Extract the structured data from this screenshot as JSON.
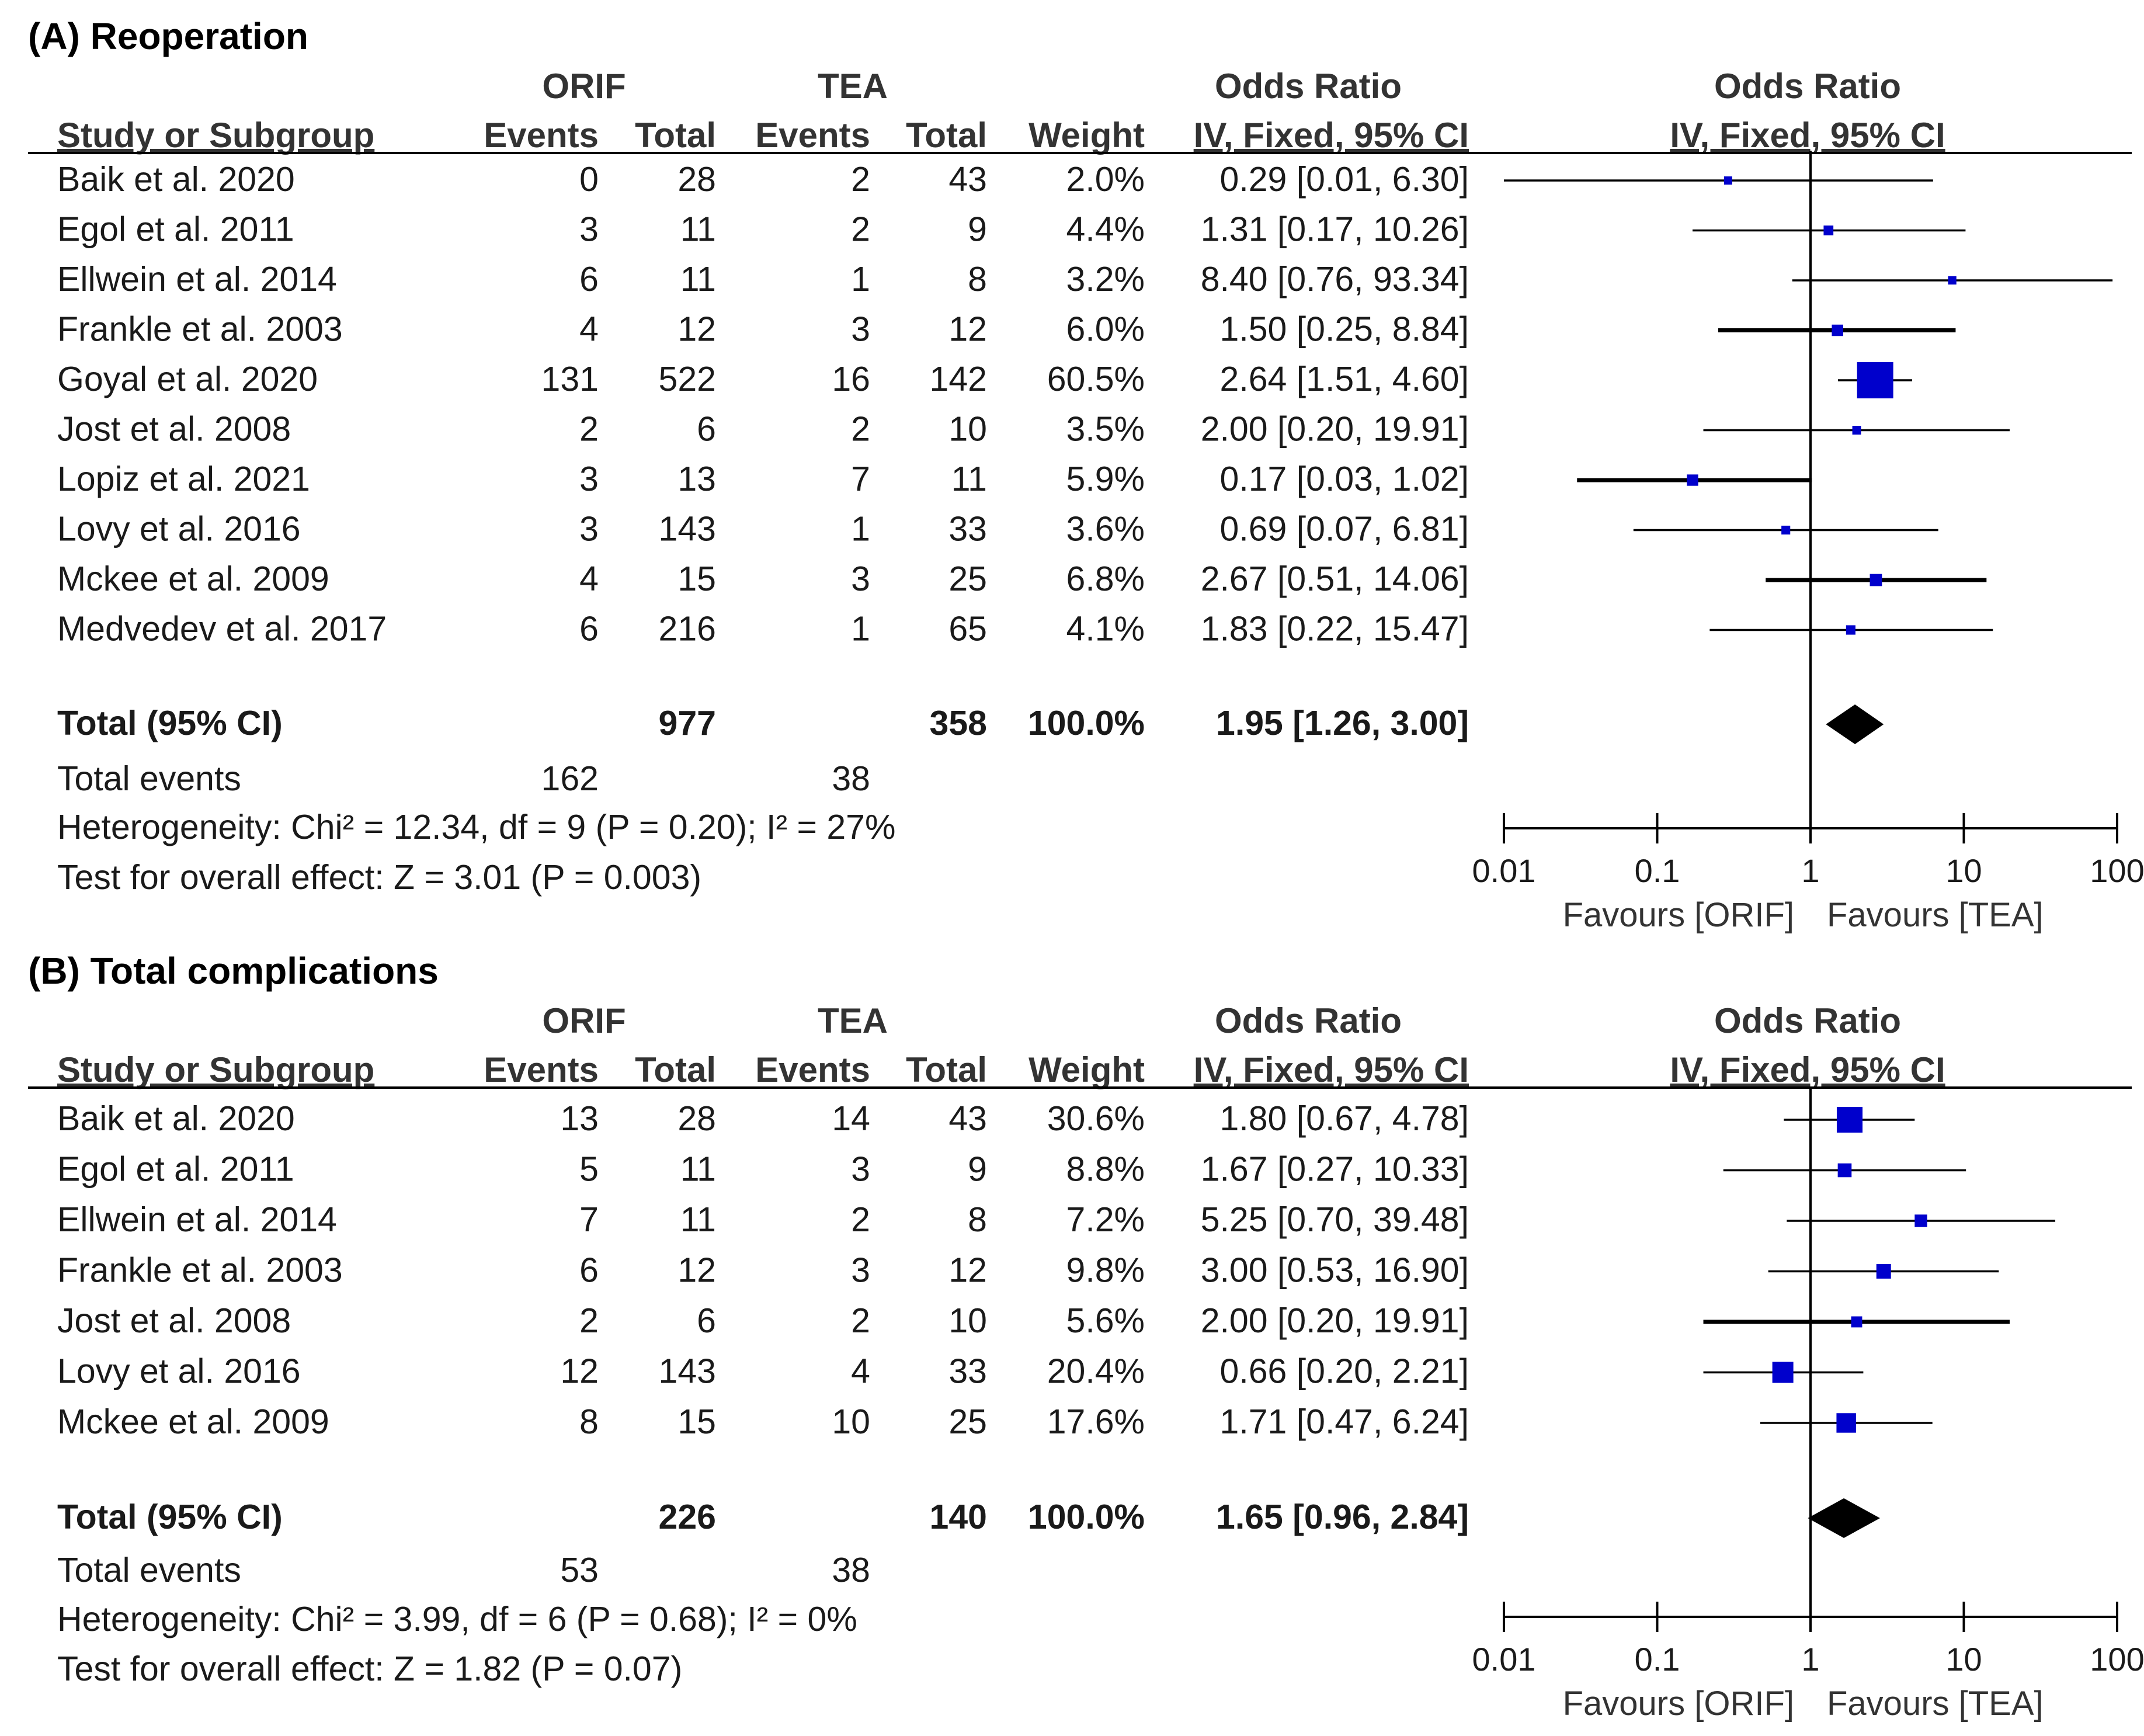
{
  "colors": {
    "ci_line": "#000000",
    "marker": "#0000cc",
    "diamond": "#000000",
    "axis": "#000000",
    "header_text": "#333333"
  },
  "headers": {
    "group1": "ORIF",
    "group2": "TEA",
    "odds_ratio": "Odds Ratio",
    "study": "Study or Subgroup",
    "events": "Events",
    "total": "Total",
    "weight": "Weight",
    "method": "IV, Fixed, 95% CI"
  },
  "axis": {
    "ticks": [
      "0.01",
      "0.1",
      "1",
      "10",
      "100"
    ],
    "favours_left": "Favours [ORIF]",
    "favours_right": "Favours [TEA]"
  },
  "chart_data": [
    {
      "type": "forest",
      "panel": "A",
      "title": "(A) Reoperation",
      "xscale": "log",
      "xlim": [
        0.01,
        100
      ],
      "studies": [
        {
          "name": "Baik et al. 2020",
          "e1": "0",
          "t1": "28",
          "e2": "2",
          "t2": "43",
          "weight": "2.0%",
          "ci_text": "0.29 [0.01, 6.30]",
          "or": 0.29,
          "lo": 0.01,
          "hi": 6.3,
          "w": 2.0
        },
        {
          "name": "Egol et al. 2011",
          "e1": "3",
          "t1": "11",
          "e2": "2",
          "t2": "9",
          "weight": "4.4%",
          "ci_text": "1.31 [0.17, 10.26]",
          "or": 1.31,
          "lo": 0.17,
          "hi": 10.26,
          "w": 4.4
        },
        {
          "name": "Ellwein et al. 2014",
          "e1": "6",
          "t1": "11",
          "e2": "1",
          "t2": "8",
          "weight": "3.2%",
          "ci_text": "8.40 [0.76, 93.34]",
          "or": 8.4,
          "lo": 0.76,
          "hi": 93.34,
          "w": 3.2
        },
        {
          "name": "Frankle et al. 2003",
          "e1": "4",
          "t1": "12",
          "e2": "3",
          "t2": "12",
          "weight": "6.0%",
          "ci_text": "1.50 [0.25, 8.84]",
          "or": 1.5,
          "lo": 0.25,
          "hi": 8.84,
          "w": 6.0
        },
        {
          "name": "Goyal et al. 2020",
          "e1": "131",
          "t1": "522",
          "e2": "16",
          "t2": "142",
          "weight": "60.5%",
          "ci_text": "2.64 [1.51, 4.60]",
          "or": 2.64,
          "lo": 1.51,
          "hi": 4.6,
          "w": 60.5
        },
        {
          "name": "Jost et al. 2008",
          "e1": "2",
          "t1": "6",
          "e2": "2",
          "t2": "10",
          "weight": "3.5%",
          "ci_text": "2.00 [0.20, 19.91]",
          "or": 2.0,
          "lo": 0.2,
          "hi": 19.91,
          "w": 3.5
        },
        {
          "name": "Lopiz et al. 2021",
          "e1": "3",
          "t1": "13",
          "e2": "7",
          "t2": "11",
          "weight": "5.9%",
          "ci_text": "0.17 [0.03, 1.02]",
          "or": 0.17,
          "lo": 0.03,
          "hi": 1.02,
          "w": 5.9
        },
        {
          "name": "Lovy et al. 2016",
          "e1": "3",
          "t1": "143",
          "e2": "1",
          "t2": "33",
          "weight": "3.6%",
          "ci_text": "0.69 [0.07, 6.81]",
          "or": 0.69,
          "lo": 0.07,
          "hi": 6.81,
          "w": 3.6
        },
        {
          "name": "Mckee et al. 2009",
          "e1": "4",
          "t1": "15",
          "e2": "3",
          "t2": "25",
          "weight": "6.8%",
          "ci_text": "2.67 [0.51, 14.06]",
          "or": 2.67,
          "lo": 0.51,
          "hi": 14.06,
          "w": 6.8
        },
        {
          "name": "Medvedev et al. 2017",
          "e1": "6",
          "t1": "216",
          "e2": "1",
          "t2": "65",
          "weight": "4.1%",
          "ci_text": "1.83 [0.22, 15.47]",
          "or": 1.83,
          "lo": 0.22,
          "hi": 15.47,
          "w": 4.1
        }
      ],
      "total": {
        "label": "Total (95% CI)",
        "t1": "977",
        "t2": "358",
        "weight": "100.0%",
        "ci_text": "1.95 [1.26, 3.00]",
        "or": 1.95,
        "lo": 1.26,
        "hi": 3.0
      },
      "total_events": {
        "label": "Total events",
        "e1": "162",
        "e2": "38"
      },
      "heterogeneity": "Heterogeneity: Chi² = 12.34, df = 9 (P = 0.20); I² = 27%",
      "overall_effect": "Test for overall effect: Z = 3.01 (P = 0.003)"
    },
    {
      "type": "forest",
      "panel": "B",
      "title": "(B) Total complications",
      "xscale": "log",
      "xlim": [
        0.01,
        100
      ],
      "studies": [
        {
          "name": "Baik et al. 2020",
          "e1": "13",
          "t1": "28",
          "e2": "14",
          "t2": "43",
          "weight": "30.6%",
          "ci_text": "1.80 [0.67, 4.78]",
          "or": 1.8,
          "lo": 0.67,
          "hi": 4.78,
          "w": 30.6
        },
        {
          "name": "Egol et al. 2011",
          "e1": "5",
          "t1": "11",
          "e2": "3",
          "t2": "9",
          "weight": "8.8%",
          "ci_text": "1.67 [0.27, 10.33]",
          "or": 1.67,
          "lo": 0.27,
          "hi": 10.33,
          "w": 8.8
        },
        {
          "name": "Ellwein et al. 2014",
          "e1": "7",
          "t1": "11",
          "e2": "2",
          "t2": "8",
          "weight": "7.2%",
          "ci_text": "5.25 [0.70, 39.48]",
          "or": 5.25,
          "lo": 0.7,
          "hi": 39.48,
          "w": 7.2
        },
        {
          "name": "Frankle et al. 2003",
          "e1": "6",
          "t1": "12",
          "e2": "3",
          "t2": "12",
          "weight": "9.8%",
          "ci_text": "3.00 [0.53, 16.90]",
          "or": 3.0,
          "lo": 0.53,
          "hi": 16.9,
          "w": 9.8
        },
        {
          "name": "Jost et al. 2008",
          "e1": "2",
          "t1": "6",
          "e2": "2",
          "t2": "10",
          "weight": "5.6%",
          "ci_text": "2.00 [0.20, 19.91]",
          "or": 2.0,
          "lo": 0.2,
          "hi": 19.91,
          "w": 5.6
        },
        {
          "name": "Lovy et al. 2016",
          "e1": "12",
          "t1": "143",
          "e2": "4",
          "t2": "33",
          "weight": "20.4%",
          "ci_text": "0.66 [0.20, 2.21]",
          "or": 0.66,
          "lo": 0.2,
          "hi": 2.21,
          "w": 20.4
        },
        {
          "name": "Mckee et al. 2009",
          "e1": "8",
          "t1": "15",
          "e2": "10",
          "t2": "25",
          "weight": "17.6%",
          "ci_text": "1.71 [0.47, 6.24]",
          "or": 1.71,
          "lo": 0.47,
          "hi": 6.24,
          "w": 17.6
        }
      ],
      "total": {
        "label": "Total (95% CI)",
        "t1": "226",
        "t2": "140",
        "weight": "100.0%",
        "ci_text": "1.65 [0.96, 2.84]",
        "or": 1.65,
        "lo": 0.96,
        "hi": 2.84
      },
      "total_events": {
        "label": "Total events",
        "e1": "53",
        "e2": "38"
      },
      "heterogeneity": "Heterogeneity: Chi² = 3.99, df = 6 (P = 0.68); I² = 0%",
      "overall_effect": "Test for overall effect: Z = 1.82 (P = 0.07)"
    }
  ]
}
